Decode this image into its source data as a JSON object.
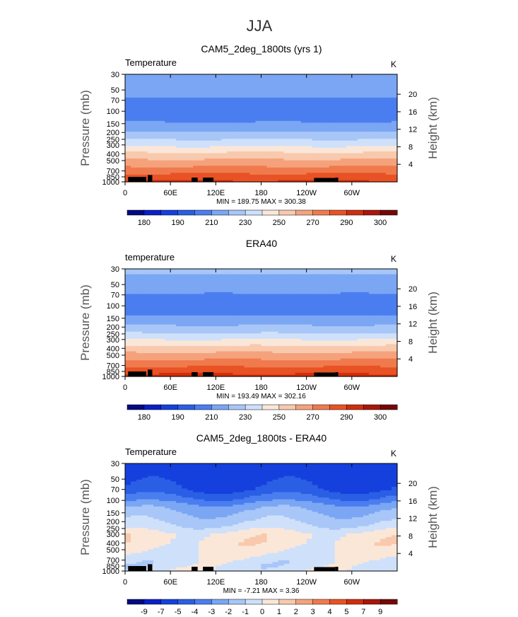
{
  "figure": {
    "season": "JJA"
  },
  "colors": {
    "abs": [
      "#040a82",
      "#0a1fc4",
      "#1540dd",
      "#2a5ee5",
      "#4a7ef0",
      "#7aa6f4",
      "#a8c6f7",
      "#cfe0fa",
      "#fbe7d8",
      "#f8c9ad",
      "#f5a27c",
      "#f07a4d",
      "#e85225",
      "#cf2e0d",
      "#a8170a",
      "#760707"
    ],
    "diff": [
      "#040a82",
      "#0a1fc4",
      "#1540dd",
      "#2a5ee5",
      "#4a7ef0",
      "#7aa6f4",
      "#a8c6f7",
      "#cfe0fa",
      "#fbe7d8",
      "#f8c9ad",
      "#f5a27c",
      "#f07a4d",
      "#e85225",
      "#cf2e0d",
      "#a8170a",
      "#760707"
    ]
  },
  "chart_data": [
    {
      "type": "heatmap",
      "title": "CAM5_2deg_1800ts (yrs 1)",
      "left_label": "Temperature",
      "units": "K",
      "ylabel": "Pressure (mb)",
      "ylabel_right": "Height (km)",
      "xticks": [
        "0",
        "60E",
        "120E",
        "180",
        "120W",
        "60W"
      ],
      "xtick_values": [
        0,
        60,
        120,
        180,
        240,
        300
      ],
      "xlim": [
        0,
        360
      ],
      "yticks": [
        "30",
        "50",
        "70",
        "100",
        "150",
        "200",
        "250",
        "300",
        "400",
        "500",
        "700",
        "850",
        "1000"
      ],
      "ytick_values": [
        30,
        50,
        70,
        100,
        150,
        200,
        250,
        300,
        400,
        500,
        700,
        850,
        1000
      ],
      "ylim": [
        1000,
        30
      ],
      "log_scale": true,
      "right_ticks": [
        "20",
        "16",
        "12",
        "8",
        "4"
      ],
      "right_values": [
        20,
        16,
        12,
        8,
        4
      ],
      "stats": "MIN = 189.75  MAX = 300.38",
      "colorbar_labels": [
        "180",
        "190",
        "210",
        "230",
        "250",
        "270",
        "290",
        "300"
      ],
      "colorbar_set": "abs",
      "profile": {
        "p": [
          30,
          50,
          70,
          100,
          120,
          150,
          200,
          250,
          300,
          400,
          500,
          700,
          850,
          1000
        ],
        "v": [
          220,
          215,
          208,
          205,
          206,
          211,
          221,
          230,
          238,
          252,
          262,
          276,
          285,
          292
        ]
      },
      "x_variation": 1.5
    },
    {
      "type": "heatmap",
      "title": "ERA40",
      "left_label": "temperature",
      "units": "K",
      "ylabel": "Pressure (mb)",
      "ylabel_right": "Height (km)",
      "xticks": [
        "0",
        "60E",
        "120E",
        "180",
        "120W",
        "60W"
      ],
      "xtick_values": [
        0,
        60,
        120,
        180,
        240,
        300
      ],
      "xlim": [
        0,
        360
      ],
      "yticks": [
        "30",
        "50",
        "70",
        "100",
        "150",
        "200",
        "250",
        "300",
        "400",
        "500",
        "700",
        "850",
        "1000"
      ],
      "ytick_values": [
        30,
        50,
        70,
        100,
        150,
        200,
        250,
        300,
        400,
        500,
        700,
        850,
        1000
      ],
      "ylim": [
        1000,
        30
      ],
      "log_scale": true,
      "right_ticks": [
        "20",
        "16",
        "12",
        "8",
        "4"
      ],
      "right_values": [
        20,
        16,
        12,
        8,
        4
      ],
      "stats": "MIN = 193.49  MAX = 302.16",
      "colorbar_labels": [
        "180",
        "190",
        "210",
        "230",
        "250",
        "270",
        "290",
        "300"
      ],
      "colorbar_set": "abs",
      "profile": {
        "p": [
          30,
          50,
          70,
          100,
          120,
          150,
          200,
          250,
          300,
          400,
          500,
          700,
          850,
          1000
        ],
        "v": [
          222,
          216,
          209,
          205,
          207,
          212,
          222,
          231,
          240,
          254,
          264,
          278,
          287,
          294
        ]
      },
      "x_variation": 1.2
    },
    {
      "type": "heatmap",
      "title": "CAM5_2deg_1800ts - ERA40",
      "left_label": "Temperature",
      "units": "K",
      "ylabel": "Pressure (mb)",
      "ylabel_right": "Height (km)",
      "xticks": [
        "0",
        "60E",
        "120E",
        "180",
        "120W",
        "60W"
      ],
      "xtick_values": [
        0,
        60,
        120,
        180,
        240,
        300
      ],
      "xlim": [
        0,
        360
      ],
      "yticks": [
        "30",
        "50",
        "70",
        "100",
        "150",
        "200",
        "250",
        "300",
        "400",
        "500",
        "700",
        "850",
        "1000"
      ],
      "ytick_values": [
        30,
        50,
        70,
        100,
        150,
        200,
        250,
        300,
        400,
        500,
        700,
        850,
        1000
      ],
      "ylim": [
        1000,
        30
      ],
      "log_scale": true,
      "right_ticks": [
        "20",
        "16",
        "12",
        "8",
        "4"
      ],
      "right_values": [
        20,
        16,
        12,
        8,
        4
      ],
      "stats": "MIN = -7.21  MAX = 3.36",
      "colorbar_labels": [
        "-9",
        "-7",
        "-5",
        "-4",
        "-3",
        "-2",
        "-1",
        "0",
        "1",
        "2",
        "3",
        "4",
        "5",
        "7",
        "9"
      ],
      "colorbar_set": "diff",
      "profile": {
        "p": [
          30,
          50,
          70,
          100,
          120,
          150,
          200,
          250,
          300,
          400,
          500,
          700,
          850,
          1000
        ],
        "v": [
          -6,
          -5.5,
          -5,
          -3.5,
          -2.5,
          -1.8,
          -1.2,
          -0.5,
          0.4,
          0.5,
          0.3,
          -0.4,
          -0.5,
          -0.3
        ]
      },
      "x_variation": 0.6
    }
  ]
}
